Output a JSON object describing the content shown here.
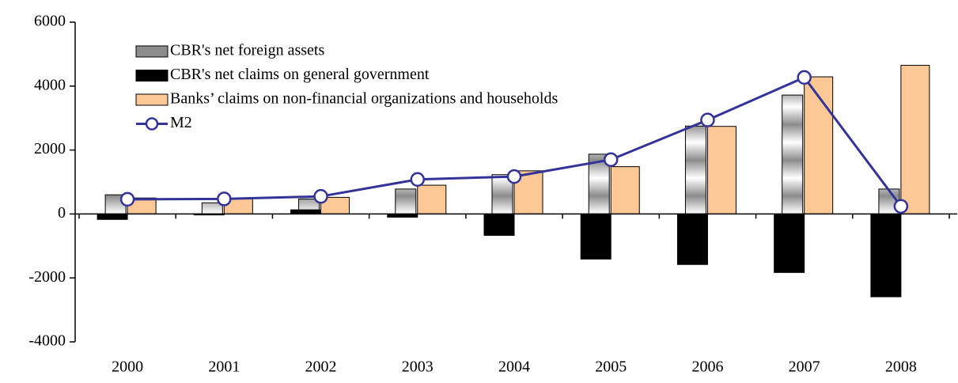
{
  "chart_data": {
    "type": "bar",
    "categories": [
      "2000",
      "2001",
      "2002",
      "2003",
      "2004",
      "2005",
      "2006",
      "2007",
      "2008"
    ],
    "series": [
      {
        "name": "CBR's net foreign assets",
        "color": "#8c8c8c",
        "type": "bar",
        "values": [
          600,
          350,
          470,
          780,
          1230,
          1870,
          2750,
          3720,
          780
        ]
      },
      {
        "name": "CBR's net claims on general government",
        "color": "#000000",
        "type": "bar",
        "values": [
          -170,
          -30,
          130,
          -100,
          -670,
          -1410,
          -1580,
          -1830,
          -2590
        ]
      },
      {
        "name": "Banks’ claims on non-financial organizations and households",
        "color": "#fcc896",
        "type": "bar",
        "values": [
          500,
          470,
          520,
          900,
          1350,
          1480,
          2740,
          4290,
          4650
        ]
      },
      {
        "name": "M2",
        "color": "#333399",
        "type": "line",
        "values": [
          460,
          470,
          550,
          1080,
          1170,
          1700,
          2940,
          4270,
          240
        ]
      }
    ],
    "ylim": [
      -4000,
      6000
    ],
    "yticks": [
      -4000,
      -2000,
      0,
      2000,
      4000,
      6000
    ],
    "grid": false,
    "legend": "top-left"
  }
}
